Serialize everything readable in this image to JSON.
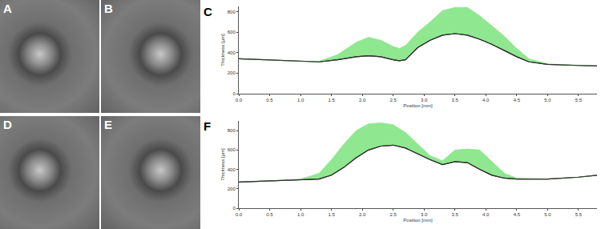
{
  "panels": [
    {
      "label": "A"
    },
    {
      "label": "B"
    },
    {
      "label": "D"
    },
    {
      "label": "E"
    }
  ],
  "chart_data": [
    {
      "type": "line",
      "annotations": [
        "C"
      ],
      "x_label": "Position [mm]",
      "y_label": "Thickness [µm]",
      "x": [
        0,
        0.5,
        1.0,
        1.3,
        1.6,
        1.9,
        2.1,
        2.3,
        2.5,
        2.6,
        2.7,
        2.9,
        3.1,
        3.3,
        3.5,
        3.7,
        3.9,
        4.1,
        4.3,
        4.5,
        4.7,
        5.0,
        5.5,
        5.8
      ],
      "series": [
        {
          "color": "#333333",
          "values": [
            340,
            330,
            315,
            310,
            330,
            360,
            370,
            360,
            330,
            320,
            330,
            450,
            520,
            570,
            585,
            570,
            530,
            480,
            420,
            360,
            310,
            285,
            275,
            270
          ]
        },
        {
          "color": "#8fe88f",
          "values": [
            340,
            330,
            315,
            315,
            380,
            500,
            550,
            520,
            460,
            440,
            470,
            600,
            700,
            810,
            840,
            840,
            760,
            660,
            560,
            440,
            340,
            290,
            275,
            270
          ]
        }
      ],
      "xlim": [
        0,
        5.8
      ],
      "xticks": [
        {
          "value": 0,
          "label": "0.0"
        },
        0.5,
        {
          "value": 1,
          "label": "1.0"
        },
        1.5,
        {
          "value": 2,
          "label": "2.0"
        },
        2.5,
        {
          "value": 3,
          "label": "3.0"
        },
        3.5,
        {
          "value": 4,
          "label": "4.0"
        },
        4.5,
        {
          "value": 5,
          "label": "5.0"
        },
        5.5
      ],
      "ylim": [
        0,
        850
      ],
      "yticks": [
        0,
        200,
        400,
        600,
        800
      ],
      "grid": false
    },
    {
      "type": "line",
      "annotations": [
        "F"
      ],
      "x_label": "Position [mm]",
      "y_label": "Thickness [µm]",
      "x": [
        0,
        0.5,
        1.0,
        1.3,
        1.5,
        1.7,
        1.9,
        2.1,
        2.3,
        2.5,
        2.7,
        2.9,
        3.1,
        3.3,
        3.5,
        3.7,
        3.9,
        4.1,
        4.3,
        4.5,
        5.0,
        5.5,
        5.8
      ],
      "series": [
        {
          "color": "#333333",
          "values": [
            270,
            280,
            290,
            300,
            340,
            420,
            520,
            600,
            640,
            650,
            620,
            560,
            500,
            450,
            480,
            470,
            400,
            340,
            310,
            300,
            300,
            320,
            340
          ]
        },
        {
          "color": "#8fe88f",
          "values": [
            270,
            280,
            300,
            360,
            500,
            660,
            800,
            870,
            880,
            860,
            780,
            660,
            540,
            490,
            600,
            610,
            600,
            480,
            360,
            310,
            300,
            320,
            340
          ]
        }
      ],
      "xlim": [
        0,
        5.8
      ],
      "xticks": [
        {
          "value": 0,
          "label": "0.0"
        },
        0.5,
        {
          "value": 1,
          "label": "1.0"
        },
        1.5,
        {
          "value": 2,
          "label": "2.0"
        },
        2.5,
        {
          "value": 3,
          "label": "3.0"
        },
        3.5,
        {
          "value": 4,
          "label": "4.0"
        },
        4.5,
        {
          "value": 5,
          "label": "5.0"
        },
        5.5
      ],
      "ylim": [
        0,
        900
      ],
      "yticks": [
        0,
        200,
        400,
        600,
        800
      ],
      "grid": false
    }
  ]
}
